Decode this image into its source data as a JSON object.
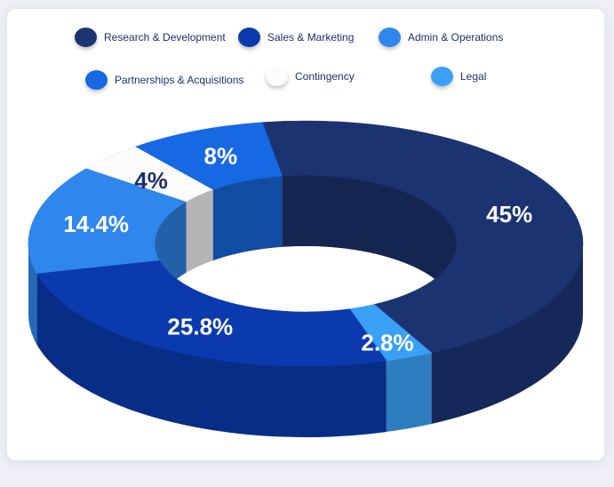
{
  "chart_data": {
    "type": "pie",
    "style": "3d-donut",
    "slices": [
      {
        "label": "Research & Development",
        "value": 45,
        "display": "45%",
        "color": "#1c3372",
        "label_color": "#ffffff"
      },
      {
        "label": "Legal",
        "value": 2.8,
        "display": "2.8%",
        "color": "#3aa0f5",
        "label_color": "#ffffff"
      },
      {
        "label": "Sales & Marketing",
        "value": 25.8,
        "display": "25.8%",
        "color": "#0a3aad",
        "label_color": "#ffffff"
      },
      {
        "label": "Admin & Operations",
        "value": 14.4,
        "display": "14.4%",
        "color": "#2f86ec",
        "label_color": "#ffffff"
      },
      {
        "label": "Contingency",
        "value": 4,
        "display": "4%",
        "color": "#fbfbfb",
        "label_color": "#1f2f6b"
      },
      {
        "label": "Partnerships & Acquisitions",
        "value": 8,
        "display": "8%",
        "color": "#1769e3",
        "label_color": "#ffffff"
      }
    ],
    "legend_placement": "top"
  },
  "legend": [
    {
      "label": "Research & Development",
      "color": "#1c3372"
    },
    {
      "label": "Sales & Marketing",
      "color": "#0a3aad"
    },
    {
      "label": "Admin & Operations",
      "color": "#2f86ec"
    },
    {
      "label": "Partnerships & Acquisitions",
      "color": "#1769e3"
    },
    {
      "label": "Contingency",
      "color": "#fbfbfb"
    },
    {
      "label": "Legal",
      "color": "#3aa0f5"
    }
  ]
}
